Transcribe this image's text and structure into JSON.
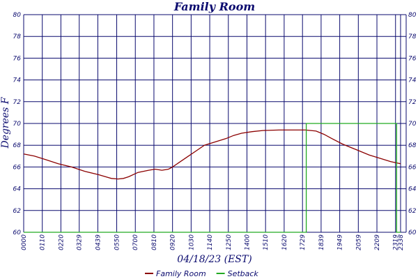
{
  "chart_data": {
    "type": "line",
    "title": "Family Room",
    "xlabel": "04/18/23 (EST)",
    "ylabel": "Degrees F",
    "ylim": [
      60,
      80
    ],
    "y_ticks": [
      60,
      62,
      64,
      66,
      68,
      70,
      72,
      74,
      76,
      78,
      80
    ],
    "x_range_minutes": [
      0,
      1439
    ],
    "x_ticks": [
      "0000",
      "0110",
      "0220",
      "0329",
      "0439",
      "0550",
      "0700",
      "0810",
      "0920",
      "1030",
      "1140",
      "1250",
      "1400",
      "1510",
      "1620",
      "1729",
      "1839",
      "1949",
      "2059",
      "2209",
      "2319",
      "2338"
    ],
    "x_tick_minutes": [
      0,
      70,
      140,
      209,
      279,
      350,
      420,
      490,
      560,
      630,
      700,
      770,
      840,
      910,
      980,
      1049,
      1119,
      1189,
      1259,
      1329,
      1399,
      1418
    ],
    "grid": true,
    "legend_position": "bottom",
    "series": [
      {
        "name": "Family Room",
        "color": "#8b0000",
        "points": [
          [
            0,
            67.2
          ],
          [
            40,
            67.0
          ],
          [
            80,
            66.7
          ],
          [
            130,
            66.3
          ],
          [
            180,
            66.0
          ],
          [
            230,
            65.6
          ],
          [
            280,
            65.3
          ],
          [
            330,
            64.95
          ],
          [
            355,
            64.9
          ],
          [
            375,
            64.95
          ],
          [
            395,
            65.1
          ],
          [
            430,
            65.5
          ],
          [
            470,
            65.7
          ],
          [
            495,
            65.8
          ],
          [
            520,
            65.7
          ],
          [
            545,
            65.8
          ],
          [
            560,
            66.0
          ],
          [
            590,
            66.5
          ],
          [
            620,
            67.0
          ],
          [
            650,
            67.5
          ],
          [
            680,
            68.0
          ],
          [
            720,
            68.3
          ],
          [
            760,
            68.6
          ],
          [
            790,
            68.9
          ],
          [
            820,
            69.1
          ],
          [
            860,
            69.25
          ],
          [
            900,
            69.35
          ],
          [
            960,
            69.4
          ],
          [
            1020,
            69.4
          ],
          [
            1060,
            69.4
          ],
          [
            1100,
            69.3
          ],
          [
            1130,
            69.0
          ],
          [
            1160,
            68.6
          ],
          [
            1200,
            68.1
          ],
          [
            1250,
            67.6
          ],
          [
            1300,
            67.1
          ],
          [
            1340,
            66.8
          ],
          [
            1380,
            66.5
          ],
          [
            1418,
            66.3
          ]
        ]
      },
      {
        "name": "Setback",
        "color": "#22aa22",
        "points": [
          [
            0,
            60
          ],
          [
            1063,
            60
          ],
          [
            1063,
            70
          ],
          [
            1403,
            70
          ],
          [
            1403,
            60
          ],
          [
            1418,
            60
          ]
        ]
      }
    ]
  }
}
